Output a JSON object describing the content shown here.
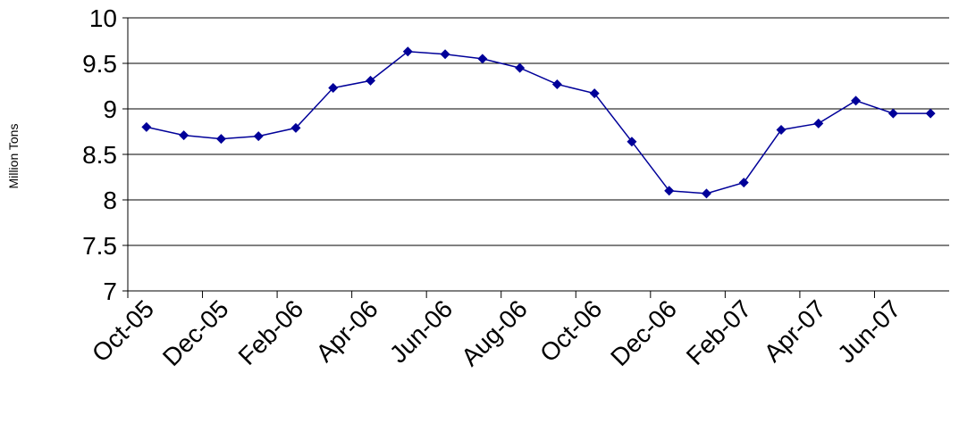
{
  "chart_data": {
    "type": "line",
    "y_label": "Million Tons",
    "categories": [
      "Oct-05",
      null,
      "Dec-05",
      null,
      "Feb-06",
      null,
      "Apr-06",
      null,
      "Jun-06",
      null,
      "Aug-06",
      null,
      "Oct-06",
      null,
      "Dec-06",
      null,
      "Feb-07",
      null,
      "Apr-07",
      null,
      "Jun-07",
      null
    ],
    "values": [
      8.8,
      8.71,
      8.67,
      8.7,
      8.79,
      9.23,
      9.31,
      9.63,
      9.6,
      9.55,
      9.45,
      9.27,
      9.17,
      8.64,
      8.1,
      8.07,
      8.19,
      8.77,
      8.84,
      9.09,
      8.95,
      8.95
    ],
    "color": "#000099",
    "ylim": [
      7,
      10
    ],
    "yticks": [
      7,
      7.5,
      8,
      8.5,
      9,
      9.5,
      10
    ],
    "grid": true
  }
}
